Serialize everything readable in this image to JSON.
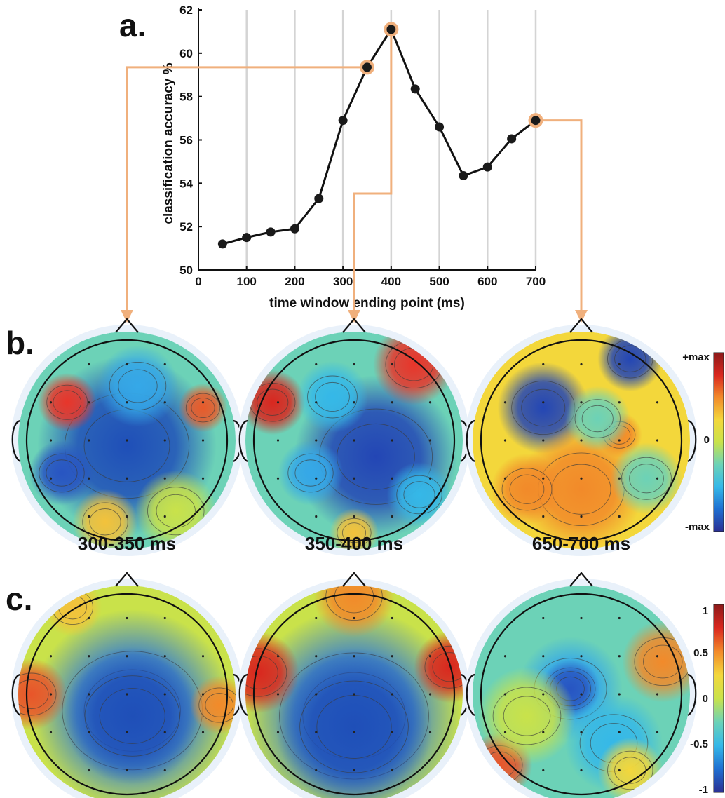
{
  "panel_letters": {
    "a": "a.",
    "b": "b.",
    "c": "c."
  },
  "chart_data": {
    "type": "line",
    "title": "",
    "xlabel": "time window ending point (ms)",
    "ylabel": "classification accuracy %",
    "xlim": [
      0,
      700
    ],
    "ylim": [
      50,
      62
    ],
    "xticks": [
      0,
      100,
      200,
      300,
      400,
      500,
      600,
      700
    ],
    "yticks": [
      50,
      52,
      54,
      56,
      58,
      60,
      62
    ],
    "grid": "vertical",
    "x": [
      50,
      100,
      150,
      200,
      250,
      300,
      350,
      400,
      450,
      500,
      550,
      600,
      650,
      700
    ],
    "y": [
      51.2,
      51.5,
      51.75,
      51.9,
      53.3,
      56.9,
      59.35,
      61.1,
      58.35,
      56.6,
      54.35,
      54.75,
      56.05,
      56.9
    ],
    "highlighted_x": [
      350,
      400,
      700
    ],
    "line_color": "#111111",
    "highlight_color": "#f0b07d"
  },
  "topomaps": {
    "window_labels": [
      "300-350 ms",
      "350-400 ms",
      "650-700 ms"
    ],
    "row_b": {
      "colorbar_labels": {
        "max": "+max",
        "zero": "0",
        "min": "-max"
      }
    },
    "row_c": {
      "colorbar_labels": [
        "1",
        "0.5",
        "0",
        "-0.5",
        "-1"
      ]
    },
    "colormap": [
      "#2b2f93",
      "#1f6fd1",
      "#35b8e8",
      "#6cd2b7",
      "#c9e24a",
      "#f3d73b",
      "#f28a2a",
      "#d9271f",
      "#8c1a1a"
    ]
  }
}
